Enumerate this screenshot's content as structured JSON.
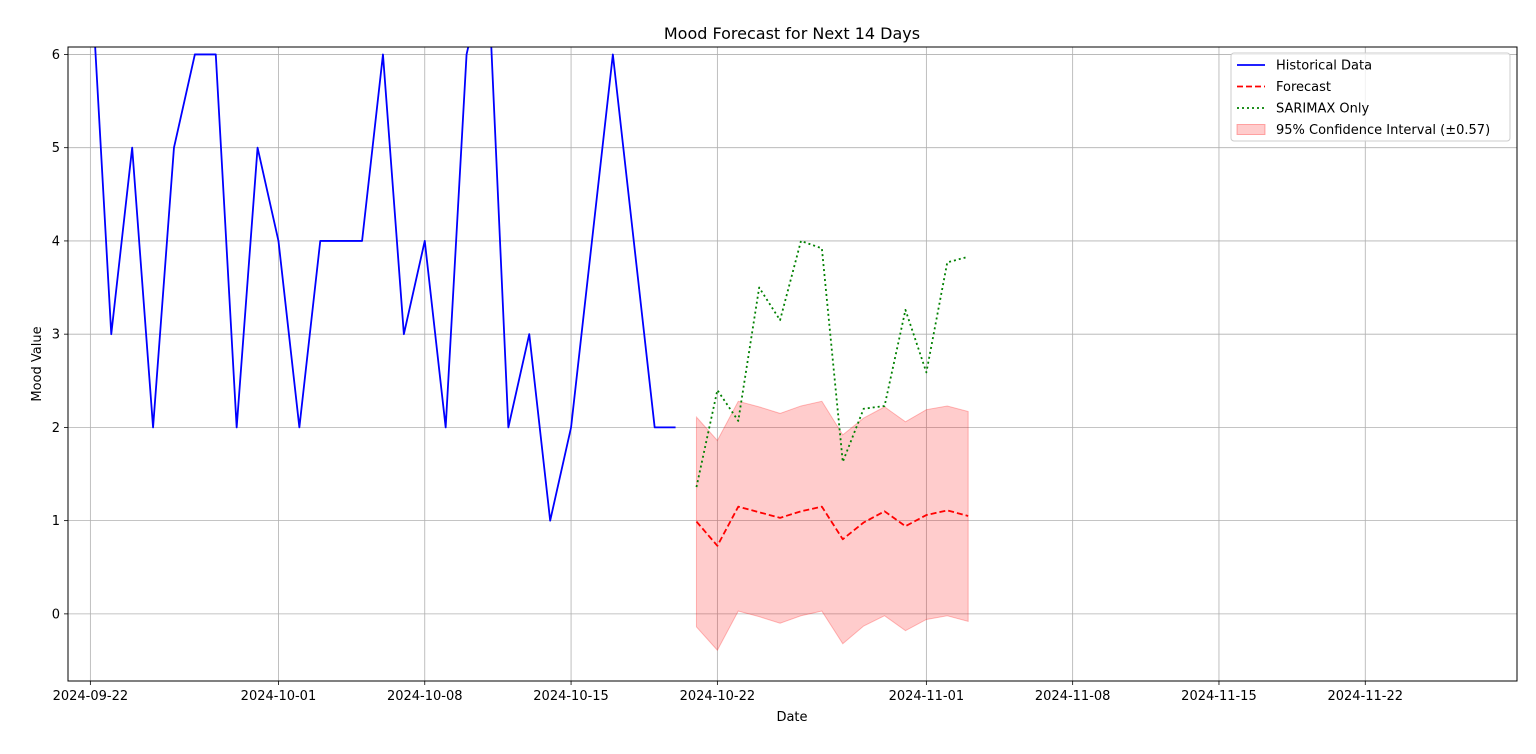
{
  "chart_data": {
    "type": "line",
    "title": "Mood Forecast for Next 14 Days",
    "xlabel": "Date",
    "ylabel": "Mood Value",
    "xlim": [
      "2024-09-21",
      "2024-11-29"
    ],
    "ylim": [
      -0.72,
      6.08
    ],
    "x_ticks": [
      "2024-09-22",
      "2024-10-01",
      "2024-10-08",
      "2024-10-15",
      "2024-10-22",
      "2024-11-01",
      "2024-11-08",
      "2024-11-15",
      "2024-11-22"
    ],
    "y_ticks": [
      0,
      1,
      2,
      3,
      4,
      5,
      6
    ],
    "grid": true,
    "legend_position": "top-right",
    "series": [
      {
        "name": "Historical Data",
        "color": "#0000ff",
        "style": "solid",
        "x": [
          "2024-09-22",
          "2024-09-23",
          "2024-09-24",
          "2024-09-25",
          "2024-09-26",
          "2024-09-27",
          "2024-09-28",
          "2024-09-29",
          "2024-09-30",
          "2024-10-01",
          "2024-10-02",
          "2024-10-03",
          "2024-10-04",
          "2024-10-05",
          "2024-10-06",
          "2024-10-07",
          "2024-10-08",
          "2024-10-09",
          "2024-10-10",
          "2024-10-11",
          "2024-10-12",
          "2024-10-13",
          "2024-10-14",
          "2024-10-15",
          "2024-10-16",
          "2024-10-17",
          "2024-10-18",
          "2024-10-19",
          "2024-10-20"
        ],
        "values": [
          7,
          3,
          5,
          2,
          5,
          6,
          6,
          2,
          5,
          4,
          2,
          4,
          4,
          4,
          6,
          3,
          4,
          2,
          6,
          7,
          2,
          3,
          1,
          2,
          4,
          6,
          4,
          2,
          2
        ]
      },
      {
        "name": "Forecast",
        "color": "#ff0000",
        "style": "dashed",
        "x": [
          "2024-10-21",
          "2024-10-22",
          "2024-10-23",
          "2024-10-24",
          "2024-10-25",
          "2024-10-26",
          "2024-10-27",
          "2024-10-28",
          "2024-10-29",
          "2024-10-30",
          "2024-10-31",
          "2024-11-01",
          "2024-11-02",
          "2024-11-03"
        ],
        "values": [
          0.99,
          0.73,
          1.15,
          1.09,
          1.03,
          1.1,
          1.15,
          0.8,
          0.98,
          1.1,
          0.94,
          1.06,
          1.11,
          1.05
        ]
      },
      {
        "name": "SARIMAX Only",
        "color": "#008000",
        "style": "dotted",
        "x": [
          "2024-10-21",
          "2024-10-22",
          "2024-10-23",
          "2024-10-24",
          "2024-10-25",
          "2024-10-26",
          "2024-10-27",
          "2024-10-28",
          "2024-10-29",
          "2024-10-30",
          "2024-10-31",
          "2024-11-01",
          "2024-11-02",
          "2024-11-03"
        ],
        "values": [
          1.36,
          2.4,
          2.07,
          3.5,
          3.15,
          4.0,
          3.92,
          1.63,
          2.2,
          2.23,
          3.26,
          2.59,
          3.77,
          3.83
        ]
      }
    ],
    "band": {
      "name": "95% Confidence Interval (±0.57)",
      "color": "#ff0000",
      "opacity": 0.2,
      "x": [
        "2024-10-21",
        "2024-10-22",
        "2024-10-23",
        "2024-10-24",
        "2024-10-25",
        "2024-10-26",
        "2024-10-27",
        "2024-10-28",
        "2024-10-29",
        "2024-10-30",
        "2024-10-31",
        "2024-11-01",
        "2024-11-02",
        "2024-11-03"
      ],
      "lower": [
        -0.14,
        -0.39,
        0.03,
        -0.03,
        -0.1,
        -0.02,
        0.03,
        -0.32,
        -0.13,
        -0.02,
        -0.18,
        -0.06,
        -0.02,
        -0.08
      ],
      "upper": [
        2.11,
        1.86,
        2.28,
        2.22,
        2.15,
        2.23,
        2.28,
        1.92,
        2.1,
        2.22,
        2.06,
        2.19,
        2.23,
        2.17
      ]
    }
  }
}
